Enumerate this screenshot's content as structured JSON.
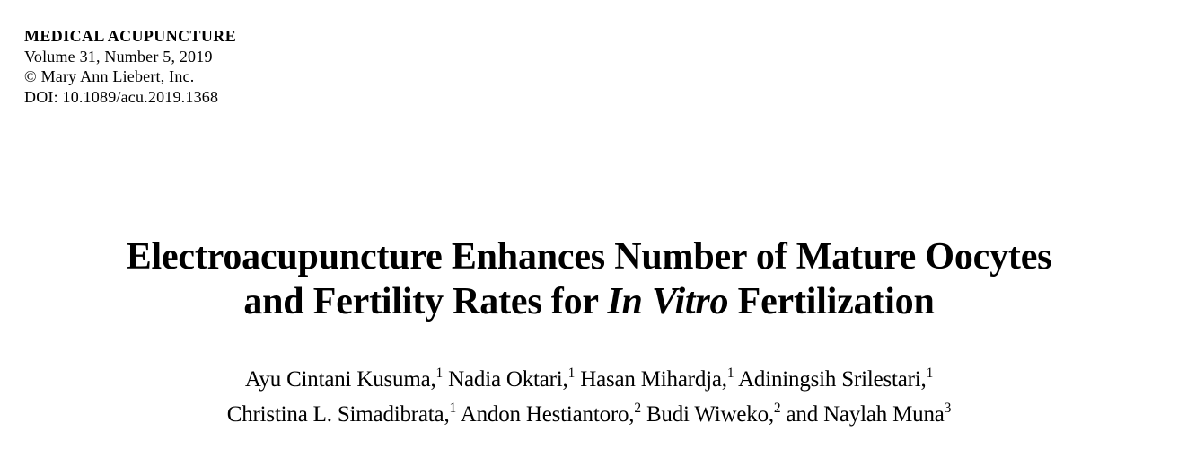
{
  "journal": {
    "name": "MEDICAL ACUPUNCTURE",
    "volume_line": "Volume 31, Number 5, 2019",
    "copyright_line": "© Mary Ann Liebert, Inc.",
    "doi_line": "DOI: 10.1089/acu.2019.1368"
  },
  "title": {
    "line1": "Electroacupuncture Enhances Number of Mature Oocytes",
    "line2_pre": "and Fertility Rates for ",
    "line2_italic": "In Vitro",
    "line2_post": " Fertilization"
  },
  "authors": {
    "line1": [
      {
        "name": "Ayu Cintani Kusuma,",
        "sup": "1"
      },
      {
        "name": " Nadia Oktari,",
        "sup": "1"
      },
      {
        "name": " Hasan Mihardja,",
        "sup": "1"
      },
      {
        "name": " Adiningsih Srilestari,",
        "sup": "1"
      }
    ],
    "line2": [
      {
        "name": "Christina L. Simadibrata,",
        "sup": "1"
      },
      {
        "name": " Andon Hestiantoro,",
        "sup": "2"
      },
      {
        "name": " Budi Wiweko,",
        "sup": "2"
      },
      {
        "name": " and Naylah Muna",
        "sup": "3"
      }
    ]
  },
  "colors": {
    "background": "#ffffff",
    "text": "#000000"
  }
}
